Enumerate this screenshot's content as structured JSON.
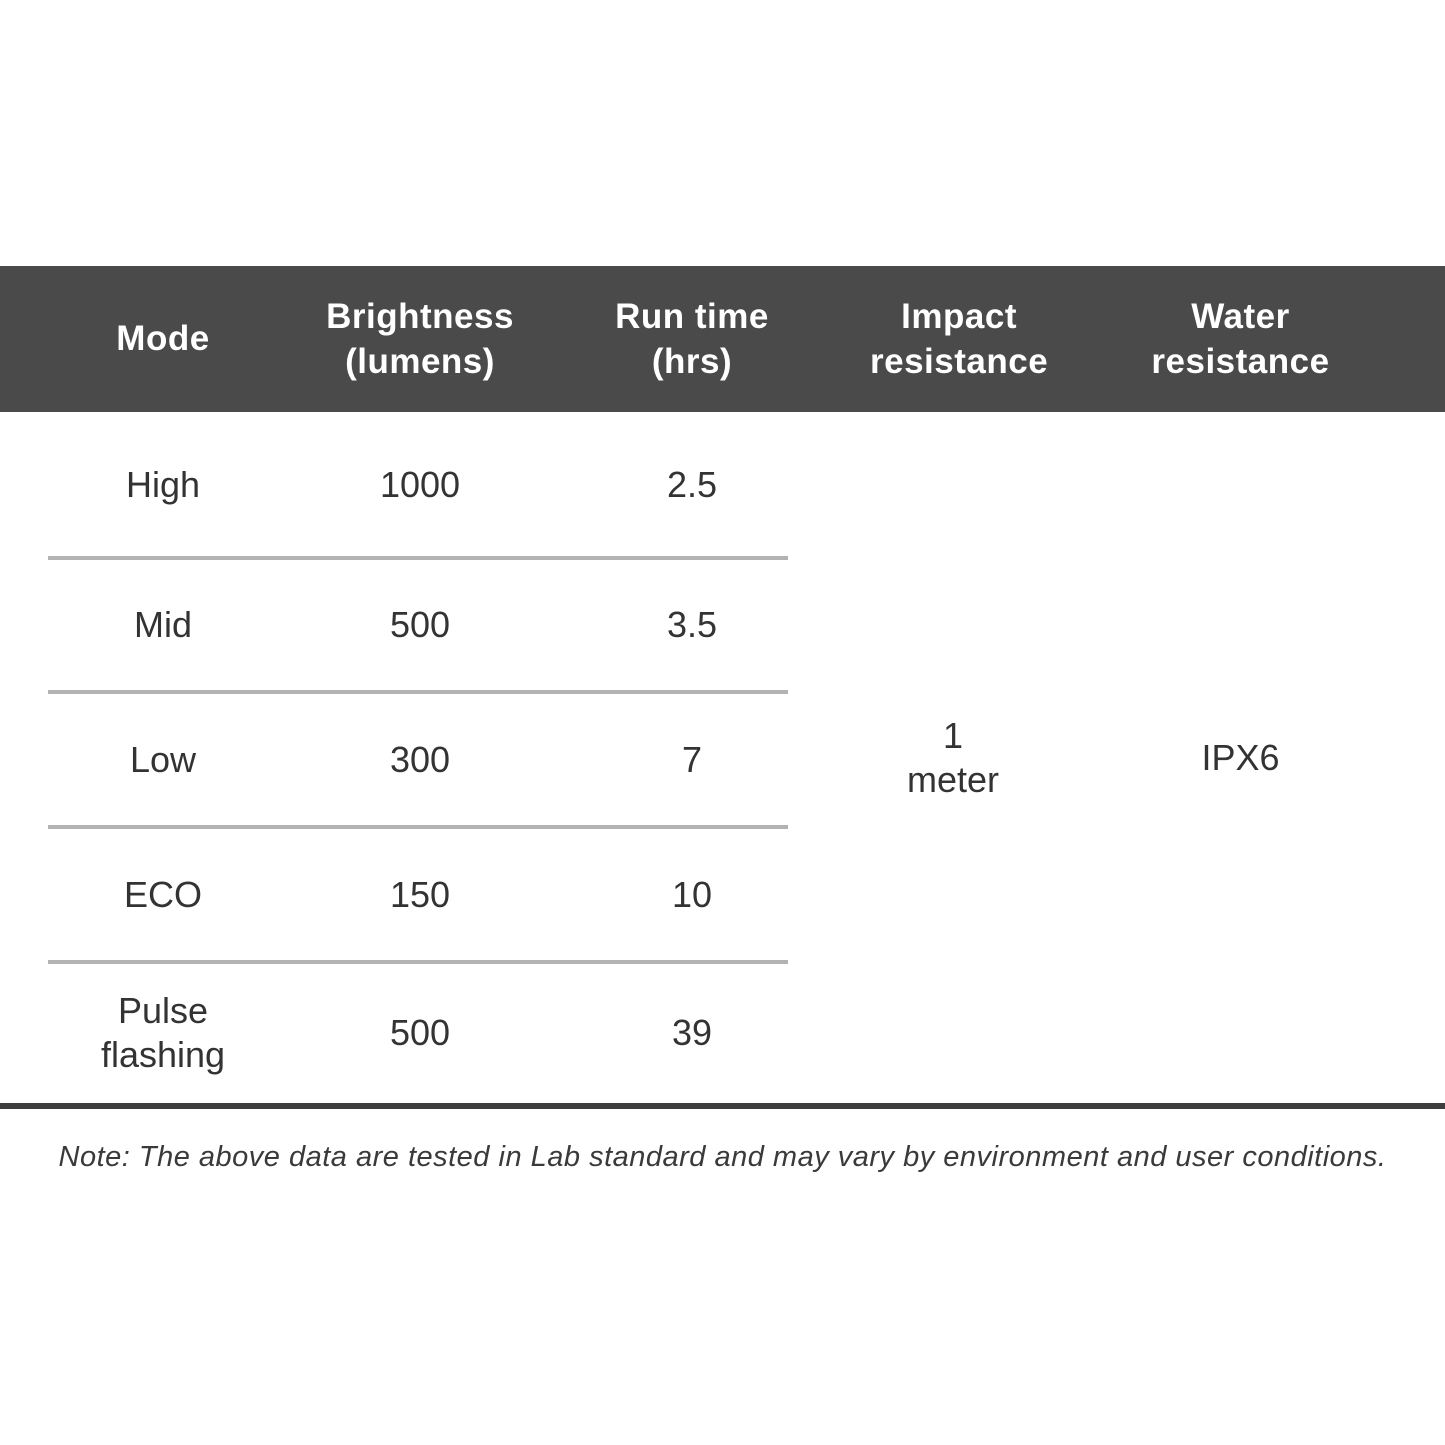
{
  "table": {
    "header": {
      "bg_color": "#4a4a4a",
      "text_color": "#ffffff",
      "columns": [
        "Mode",
        "Brightness (lumens)",
        "Run time (hrs)",
        "Impact resistance",
        "Water resistance"
      ]
    },
    "rows": [
      {
        "mode": "High",
        "brightness": "1000",
        "run_time": "2.5"
      },
      {
        "mode": "Mid",
        "brightness": "500",
        "run_time": "3.5"
      },
      {
        "mode": "Low",
        "brightness": "300",
        "run_time": "7"
      },
      {
        "mode": "ECO",
        "brightness": "150",
        "run_time": "10"
      },
      {
        "mode": "Pulse flashing",
        "brightness": "500",
        "run_time": "39"
      }
    ],
    "merged": {
      "impact_resistance": "1 meter",
      "water_resistance": "IPX6"
    },
    "divider_color": "#b3b3b3",
    "bottom_border_color": "#3e3e3e"
  },
  "note": "Note: The above data are tested in Lab standard and may vary by environment and user conditions."
}
